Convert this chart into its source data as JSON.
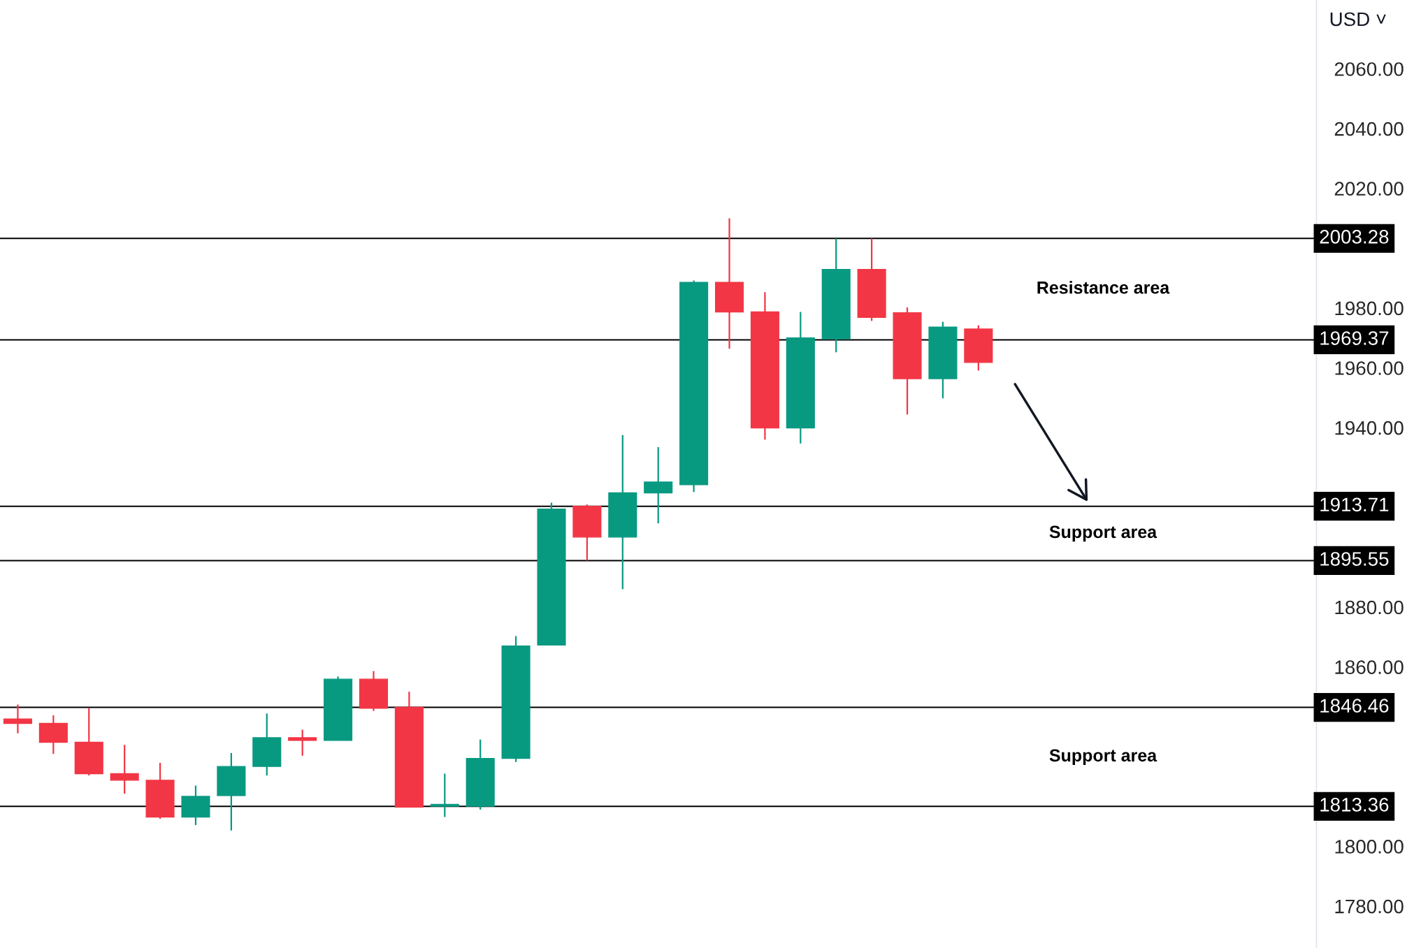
{
  "chart_data": {
    "type": "candlestick",
    "categories": [
      null,
      null,
      null,
      null,
      null,
      null,
      null,
      null,
      null,
      null,
      null,
      null,
      null,
      null,
      null,
      null,
      null,
      null,
      null,
      null,
      null,
      null,
      null,
      null,
      null,
      null,
      null,
      null,
      null,
      null,
      null,
      null,
      null,
      null,
      null,
      null,
      null
    ],
    "ohlc": [
      [
        1842.6,
        1847.4,
        1837.8,
        1841.1
      ],
      [
        1841.1,
        1843.8,
        1830.9,
        1834.8
      ],
      [
        1834.8,
        1846.2,
        1823.7,
        1824.3
      ],
      [
        1824.3,
        1833.9,
        1817.6,
        1822.1
      ],
      [
        1822.1,
        1827.9,
        1809.2,
        1809.8
      ],
      [
        1809.8,
        1820.3,
        1807.1,
        1816.7
      ],
      [
        1817.0,
        1831.2,
        1805.3,
        1826.7
      ],
      [
        1826.7,
        1844.4,
        1823.7,
        1836.3
      ],
      [
        1836.3,
        1839.0,
        1830.3,
        1835.4
      ],
      [
        1835.4,
        1856.8,
        1835.4,
        1855.9
      ],
      [
        1855.9,
        1858.6,
        1845.3,
        1846.2
      ],
      [
        1846.5,
        1851.7,
        1813.1,
        1813.1
      ],
      [
        1813.4,
        1824.3,
        1809.8,
        1814.0
      ],
      [
        1813.4,
        1835.7,
        1812.3,
        1829.4
      ],
      [
        1829.4,
        1870.3,
        1828.2,
        1867.0
      ],
      [
        1867.3,
        1914.9,
        1867.3,
        1912.8
      ],
      [
        1913.7,
        1914.3,
        1895.55,
        1903.4
      ],
      [
        1903.4,
        1937.5,
        1886.0,
        1918.2
      ],
      [
        1918.2,
        1933.5,
        1908.0,
        1921.8
      ],
      [
        1920.9,
        1989.2,
        1918.5,
        1988.6
      ],
      [
        1988.6,
        2010.0,
        1966.4,
        1978.7
      ],
      [
        1978.7,
        1985.3,
        1936.0,
        1939.9
      ],
      [
        1939.9,
        1978.7,
        1934.7,
        1970.0
      ],
      [
        1969.7,
        2003.28,
        1965.2,
        1992.9
      ],
      [
        1992.9,
        2003.28,
        1975.7,
        1976.9
      ],
      [
        1978.4,
        1980.2,
        1944.4,
        1956.4
      ],
      [
        1956.4,
        1975.4,
        1949.8,
        1973.6
      ],
      [
        1973.0,
        1974.2,
        1959.1,
        1961.8
      ],
      null,
      null,
      null,
      null,
      null,
      null,
      null,
      null,
      null
    ],
    "colors": [
      "#f23645",
      "#f23645",
      "#f23645",
      "#f23645",
      "#f23645",
      "#089981",
      "#089981",
      "#089981",
      "#f23645",
      "#089981",
      "#f23645",
      "#f23645",
      "#089981",
      "#089981",
      "#089981",
      "#089981",
      "#f23645",
      "#089981",
      "#089981",
      "#089981",
      "#f23645",
      "#f23645",
      "#089981",
      "#089981",
      "#f23645",
      "#f23645",
      "#089981",
      "#f23645",
      null,
      null,
      null,
      null,
      null,
      null,
      null,
      null,
      null
    ],
    "ylim": [
      1766,
      2083
    ],
    "yticks": [
      {
        "value": 1780,
        "label": "1780.00"
      },
      {
        "value": 1800,
        "label": "1800.00"
      },
      {
        "value": 1860,
        "label": "1860.00"
      },
      {
        "value": 1880,
        "label": "1880.00"
      },
      {
        "value": 1940,
        "label": "1940.00"
      },
      {
        "value": 1960,
        "label": "1960.00"
      },
      {
        "value": 1980,
        "label": "1980.00"
      },
      {
        "value": 2020,
        "label": "2020.00"
      },
      {
        "value": 2040,
        "label": "2040.00"
      },
      {
        "value": 2060,
        "label": "2060.00"
      }
    ],
    "tick_labels": "y",
    "ref_lines": [
      {
        "axis": "y",
        "value": 2003.28,
        "label": "2003.28",
        "color": "#000000"
      },
      {
        "axis": "y",
        "value": 1969.37,
        "label": "1969.37",
        "color": "#000000"
      },
      {
        "axis": "y",
        "value": 1913.71,
        "label": "1913.71",
        "color": "#000000"
      },
      {
        "axis": "y",
        "value": 1895.55,
        "label": "1895.55",
        "color": "#000000"
      },
      {
        "axis": "y",
        "value": 1846.46,
        "label": "1846.46",
        "color": "#000000"
      },
      {
        "axis": "y",
        "value": 1813.36,
        "label": "1813.36",
        "color": "#000000"
      }
    ],
    "annotations": [
      "USD ˅",
      "Resistance area",
      "Support area",
      "Support area"
    ],
    "grid": false
  }
}
